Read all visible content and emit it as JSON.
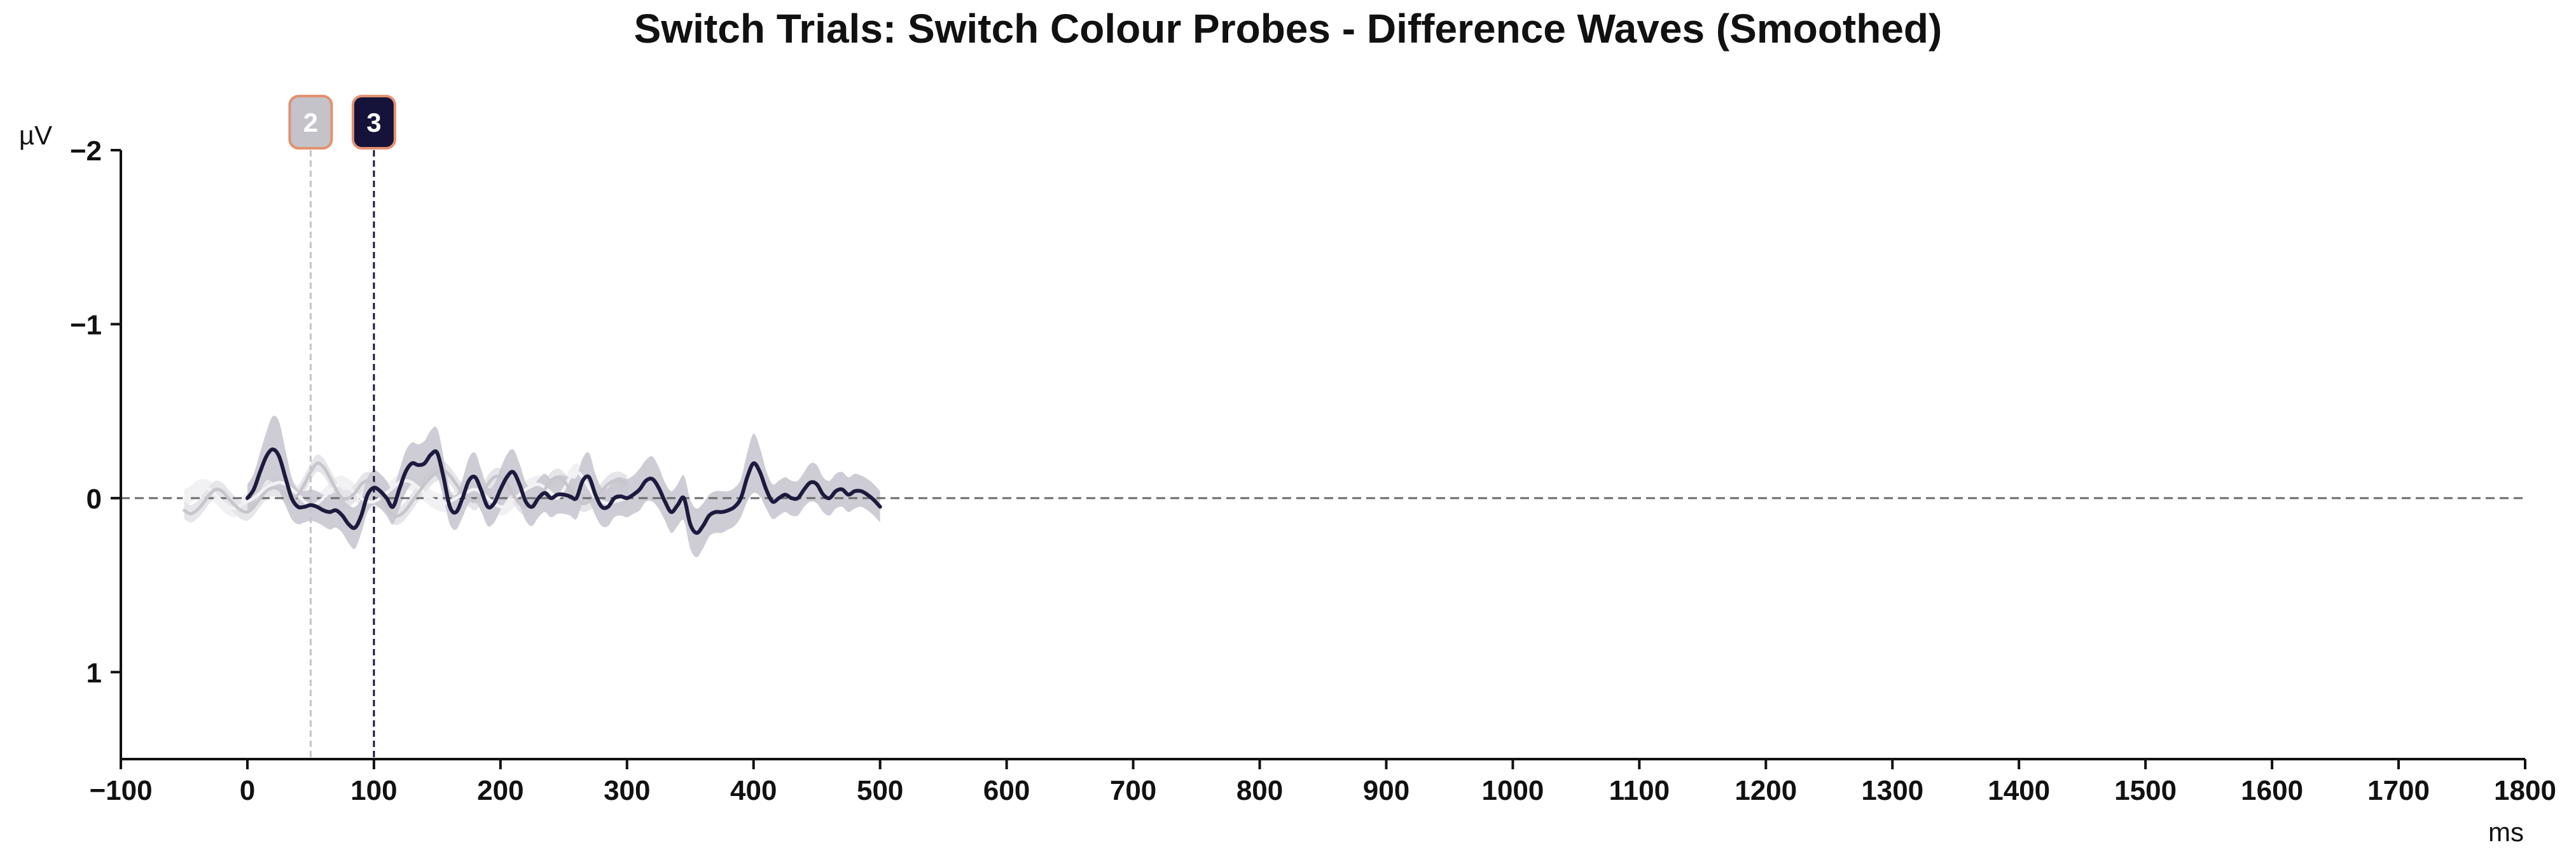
{
  "chart_data": {
    "type": "line",
    "title": "Switch Trials: Switch Colour Probes - Difference Waves (Smoothed)",
    "xlabel": "ms",
    "ylabel": "µV",
    "xlim": [
      -100,
      1800
    ],
    "ylim": [
      1.5,
      -2
    ],
    "y_inverted": true,
    "x_ticks": [
      -100,
      0,
      100,
      200,
      300,
      400,
      500,
      600,
      700,
      800,
      900,
      1000,
      1100,
      1200,
      1300,
      1400,
      1500,
      1600,
      1700,
      1800
    ],
    "x_tick_labels": [
      "−100",
      "0",
      "100",
      "200",
      "300",
      "400",
      "500",
      "600",
      "700",
      "800",
      "900",
      "1000",
      "1100",
      "1200",
      "1300",
      "1400",
      "1500",
      "1600",
      "1700",
      "1800"
    ],
    "y_ticks": [
      -2,
      -1,
      0,
      1
    ],
    "y_tick_labels": [
      "−2",
      "−1",
      "0",
      "1"
    ],
    "zero_line": true,
    "grid": false,
    "legend": "none",
    "markers": [
      {
        "label": "2",
        "x": 50,
        "color": "#c4c3c9",
        "border": "#e4906f"
      },
      {
        "label": "3",
        "x": 100,
        "color": "#15133a",
        "border": "#e4906f"
      }
    ],
    "series": [
      {
        "color": "#f2f2f4",
        "band_color": "#f0f0f3",
        "x": [
          -50,
          -45,
          -40,
          -35,
          -30,
          -25,
          -20,
          -15,
          -10,
          -5,
          0,
          5,
          10,
          15,
          20,
          25,
          30,
          35,
          40,
          45,
          50,
          55,
          60,
          65,
          70,
          75,
          80,
          85,
          90,
          95,
          100,
          105,
          110,
          115,
          120,
          125,
          130,
          135,
          140,
          145,
          150,
          155,
          160,
          165,
          170,
          175,
          180,
          185,
          190,
          195,
          200,
          205,
          210,
          215,
          220,
          225,
          230,
          235,
          240,
          245,
          250,
          255,
          260,
          265,
          270,
          275,
          280,
          285,
          290,
          295,
          300
        ],
        "y": [
          0.0,
          -0.02,
          -0.05,
          -0.06,
          -0.05,
          -0.02,
          0.02,
          0.05,
          0.06,
          0.04,
          0.02,
          0.0,
          -0.03,
          -0.06,
          -0.08,
          -0.09,
          -0.08,
          -0.05,
          -0.02,
          0.02,
          0.04,
          0.03,
          0.0,
          -0.04,
          -0.07,
          -0.08,
          -0.06,
          -0.03,
          0.0,
          0.02,
          0.02,
          0.0,
          -0.03,
          -0.06,
          -0.09,
          -0.1,
          -0.09,
          -0.06,
          -0.03,
          0.0,
          0.02,
          0.03,
          0.02,
          0.0,
          -0.02,
          -0.04,
          -0.05,
          -0.03,
          0.0,
          0.03,
          0.05,
          0.04,
          0.01,
          -0.02,
          -0.05,
          -0.07,
          -0.08,
          -0.06,
          -0.03,
          0.0,
          -0.05,
          -0.12,
          -0.15,
          -0.12,
          -0.06,
          0.0,
          0.02,
          0.03,
          0.02,
          0.01,
          0.0
        ],
        "err": [
          0.05,
          0.05,
          0.05,
          0.05,
          0.05,
          0.05,
          0.05,
          0.05,
          0.05,
          0.05,
          0.05,
          0.05,
          0.05,
          0.05,
          0.05,
          0.05,
          0.05,
          0.05,
          0.05,
          0.05,
          0.05,
          0.05,
          0.05,
          0.05,
          0.05,
          0.05,
          0.05,
          0.05,
          0.05,
          0.05,
          0.05,
          0.05,
          0.05,
          0.05,
          0.05,
          0.05,
          0.05,
          0.05,
          0.05,
          0.05,
          0.05,
          0.05,
          0.05,
          0.05,
          0.05,
          0.05,
          0.05,
          0.05,
          0.05,
          0.05,
          0.05,
          0.05,
          0.05,
          0.05,
          0.05,
          0.05,
          0.05,
          0.05,
          0.05,
          0.05,
          0.05,
          0.05,
          0.05,
          0.05,
          0.05,
          0.05,
          0.05,
          0.05,
          0.05,
          0.05,
          0.05
        ]
      },
      {
        "color": "#c7c6cc",
        "band_color": "#e3e2e7",
        "x": [
          -50,
          -45,
          -40,
          -35,
          -30,
          -25,
          -20,
          -15,
          -10,
          -5,
          0,
          5,
          10,
          15,
          20,
          25,
          30,
          35,
          40,
          45,
          50,
          55,
          60,
          65,
          70,
          75,
          80,
          85,
          90,
          95,
          100,
          105,
          110,
          115,
          120,
          125,
          130,
          135,
          140,
          145,
          150,
          155,
          160,
          165,
          170,
          175,
          180,
          185,
          190,
          195,
          200,
          205,
          210,
          215,
          220,
          225,
          230,
          235,
          240,
          245,
          250,
          255,
          260,
          265,
          270,
          275,
          280,
          285,
          290,
          295,
          300
        ],
        "y": [
          0.07,
          0.09,
          0.07,
          0.03,
          -0.02,
          -0.05,
          -0.04,
          0.0,
          0.04,
          0.07,
          0.08,
          0.05,
          0.0,
          -0.04,
          -0.06,
          -0.05,
          -0.02,
          0.0,
          -0.02,
          -0.08,
          -0.15,
          -0.2,
          -0.18,
          -0.12,
          -0.05,
          0.0,
          0.0,
          -0.03,
          -0.08,
          -0.1,
          -0.08,
          -0.02,
          0.05,
          0.1,
          0.1,
          0.07,
          0.02,
          -0.03,
          -0.08,
          -0.12,
          -0.15,
          -0.16,
          -0.13,
          -0.08,
          -0.03,
          0.0,
          0.02,
          -0.02,
          -0.08,
          -0.12,
          -0.12,
          -0.08,
          -0.02,
          0.03,
          0.05,
          0.03,
          0.0,
          -0.05,
          -0.1,
          -0.12,
          -0.1,
          -0.05,
          0.0,
          0.03,
          0.02,
          0.0,
          -0.04,
          -0.08,
          -0.1,
          -0.1,
          -0.08
        ],
        "err": [
          0.05,
          0.05,
          0.05,
          0.05,
          0.05,
          0.05,
          0.05,
          0.05,
          0.05,
          0.05,
          0.05,
          0.05,
          0.05,
          0.05,
          0.05,
          0.05,
          0.05,
          0.05,
          0.05,
          0.05,
          0.05,
          0.05,
          0.05,
          0.05,
          0.05,
          0.05,
          0.05,
          0.05,
          0.05,
          0.05,
          0.05,
          0.05,
          0.05,
          0.05,
          0.05,
          0.05,
          0.05,
          0.05,
          0.05,
          0.05,
          0.05,
          0.05,
          0.05,
          0.05,
          0.05,
          0.05,
          0.05,
          0.05,
          0.05,
          0.05,
          0.05,
          0.05,
          0.05,
          0.05,
          0.05,
          0.05,
          0.05,
          0.05,
          0.05,
          0.05,
          0.05,
          0.05,
          0.05,
          0.05,
          0.05,
          0.05,
          0.05,
          0.05,
          0.05,
          0.05,
          0.05
        ]
      },
      {
        "color": "#1c1a3d",
        "band_color": "#c9c8d2",
        "x": [
          0,
          5,
          10,
          15,
          20,
          25,
          30,
          35,
          40,
          45,
          50,
          55,
          60,
          65,
          70,
          75,
          80,
          85,
          90,
          95,
          100,
          105,
          110,
          115,
          120,
          125,
          130,
          135,
          140,
          145,
          150,
          155,
          160,
          165,
          170,
          175,
          180,
          185,
          190,
          195,
          200,
          205,
          210,
          215,
          220,
          225,
          230,
          235,
          240,
          245,
          250,
          255,
          260,
          265,
          270,
          275,
          280,
          285,
          290,
          295,
          300,
          305,
          310,
          315,
          320,
          325,
          330,
          335,
          340,
          345,
          350,
          355,
          360,
          365,
          370,
          375,
          380,
          385,
          390,
          395,
          400,
          405,
          410,
          415,
          420,
          425,
          430,
          435,
          440,
          445,
          450,
          455,
          460,
          465,
          470,
          475,
          480,
          485,
          490,
          495,
          500
        ],
        "y": [
          0.0,
          -0.05,
          -0.15,
          -0.24,
          -0.28,
          -0.24,
          -0.12,
          0.0,
          0.05,
          0.05,
          0.04,
          0.05,
          0.07,
          0.08,
          0.07,
          0.1,
          0.15,
          0.17,
          0.1,
          -0.02,
          -0.06,
          -0.04,
          0.0,
          0.05,
          -0.05,
          -0.15,
          -0.2,
          -0.19,
          -0.2,
          -0.25,
          -0.26,
          -0.12,
          0.05,
          0.08,
          0.0,
          -0.1,
          -0.12,
          -0.04,
          0.05,
          0.03,
          -0.05,
          -0.12,
          -0.15,
          -0.08,
          0.02,
          0.05,
          0.0,
          -0.03,
          0.0,
          -0.02,
          -0.02,
          -0.01,
          0.0,
          -0.1,
          -0.12,
          -0.02,
          0.05,
          0.05,
          0.0,
          -0.01,
          0.0,
          -0.02,
          -0.05,
          -0.1,
          -0.11,
          -0.06,
          0.02,
          0.08,
          0.04,
          0.0,
          0.15,
          0.2,
          0.16,
          0.1,
          0.08,
          0.08,
          0.07,
          0.05,
          0.0,
          -0.12,
          -0.2,
          -0.15,
          -0.05,
          0.02,
          0.0,
          -0.02,
          0.0,
          0.0,
          -0.05,
          -0.09,
          -0.08,
          -0.02,
          0.0,
          -0.04,
          -0.05,
          -0.02,
          -0.04,
          -0.04,
          -0.02,
          0.01,
          0.05
        ],
        "err": [
          0.08,
          0.09,
          0.11,
          0.14,
          0.19,
          0.2,
          0.16,
          0.12,
          0.1,
          0.09,
          0.09,
          0.09,
          0.09,
          0.1,
          0.1,
          0.1,
          0.11,
          0.12,
          0.1,
          0.1,
          0.1,
          0.1,
          0.1,
          0.1,
          0.11,
          0.12,
          0.12,
          0.12,
          0.13,
          0.14,
          0.14,
          0.12,
          0.1,
          0.1,
          0.11,
          0.13,
          0.14,
          0.12,
          0.11,
          0.11,
          0.12,
          0.13,
          0.13,
          0.12,
          0.11,
          0.11,
          0.11,
          0.11,
          0.11,
          0.11,
          0.11,
          0.11,
          0.12,
          0.13,
          0.14,
          0.12,
          0.11,
          0.11,
          0.11,
          0.11,
          0.11,
          0.11,
          0.12,
          0.12,
          0.13,
          0.12,
          0.11,
          0.12,
          0.12,
          0.13,
          0.14,
          0.14,
          0.13,
          0.12,
          0.12,
          0.12,
          0.11,
          0.11,
          0.11,
          0.14,
          0.17,
          0.14,
          0.11,
          0.1,
          0.1,
          0.1,
          0.1,
          0.1,
          0.1,
          0.11,
          0.11,
          0.1,
          0.1,
          0.1,
          0.1,
          0.1,
          0.1,
          0.09,
          0.09,
          0.09,
          0.09
        ]
      }
    ]
  }
}
